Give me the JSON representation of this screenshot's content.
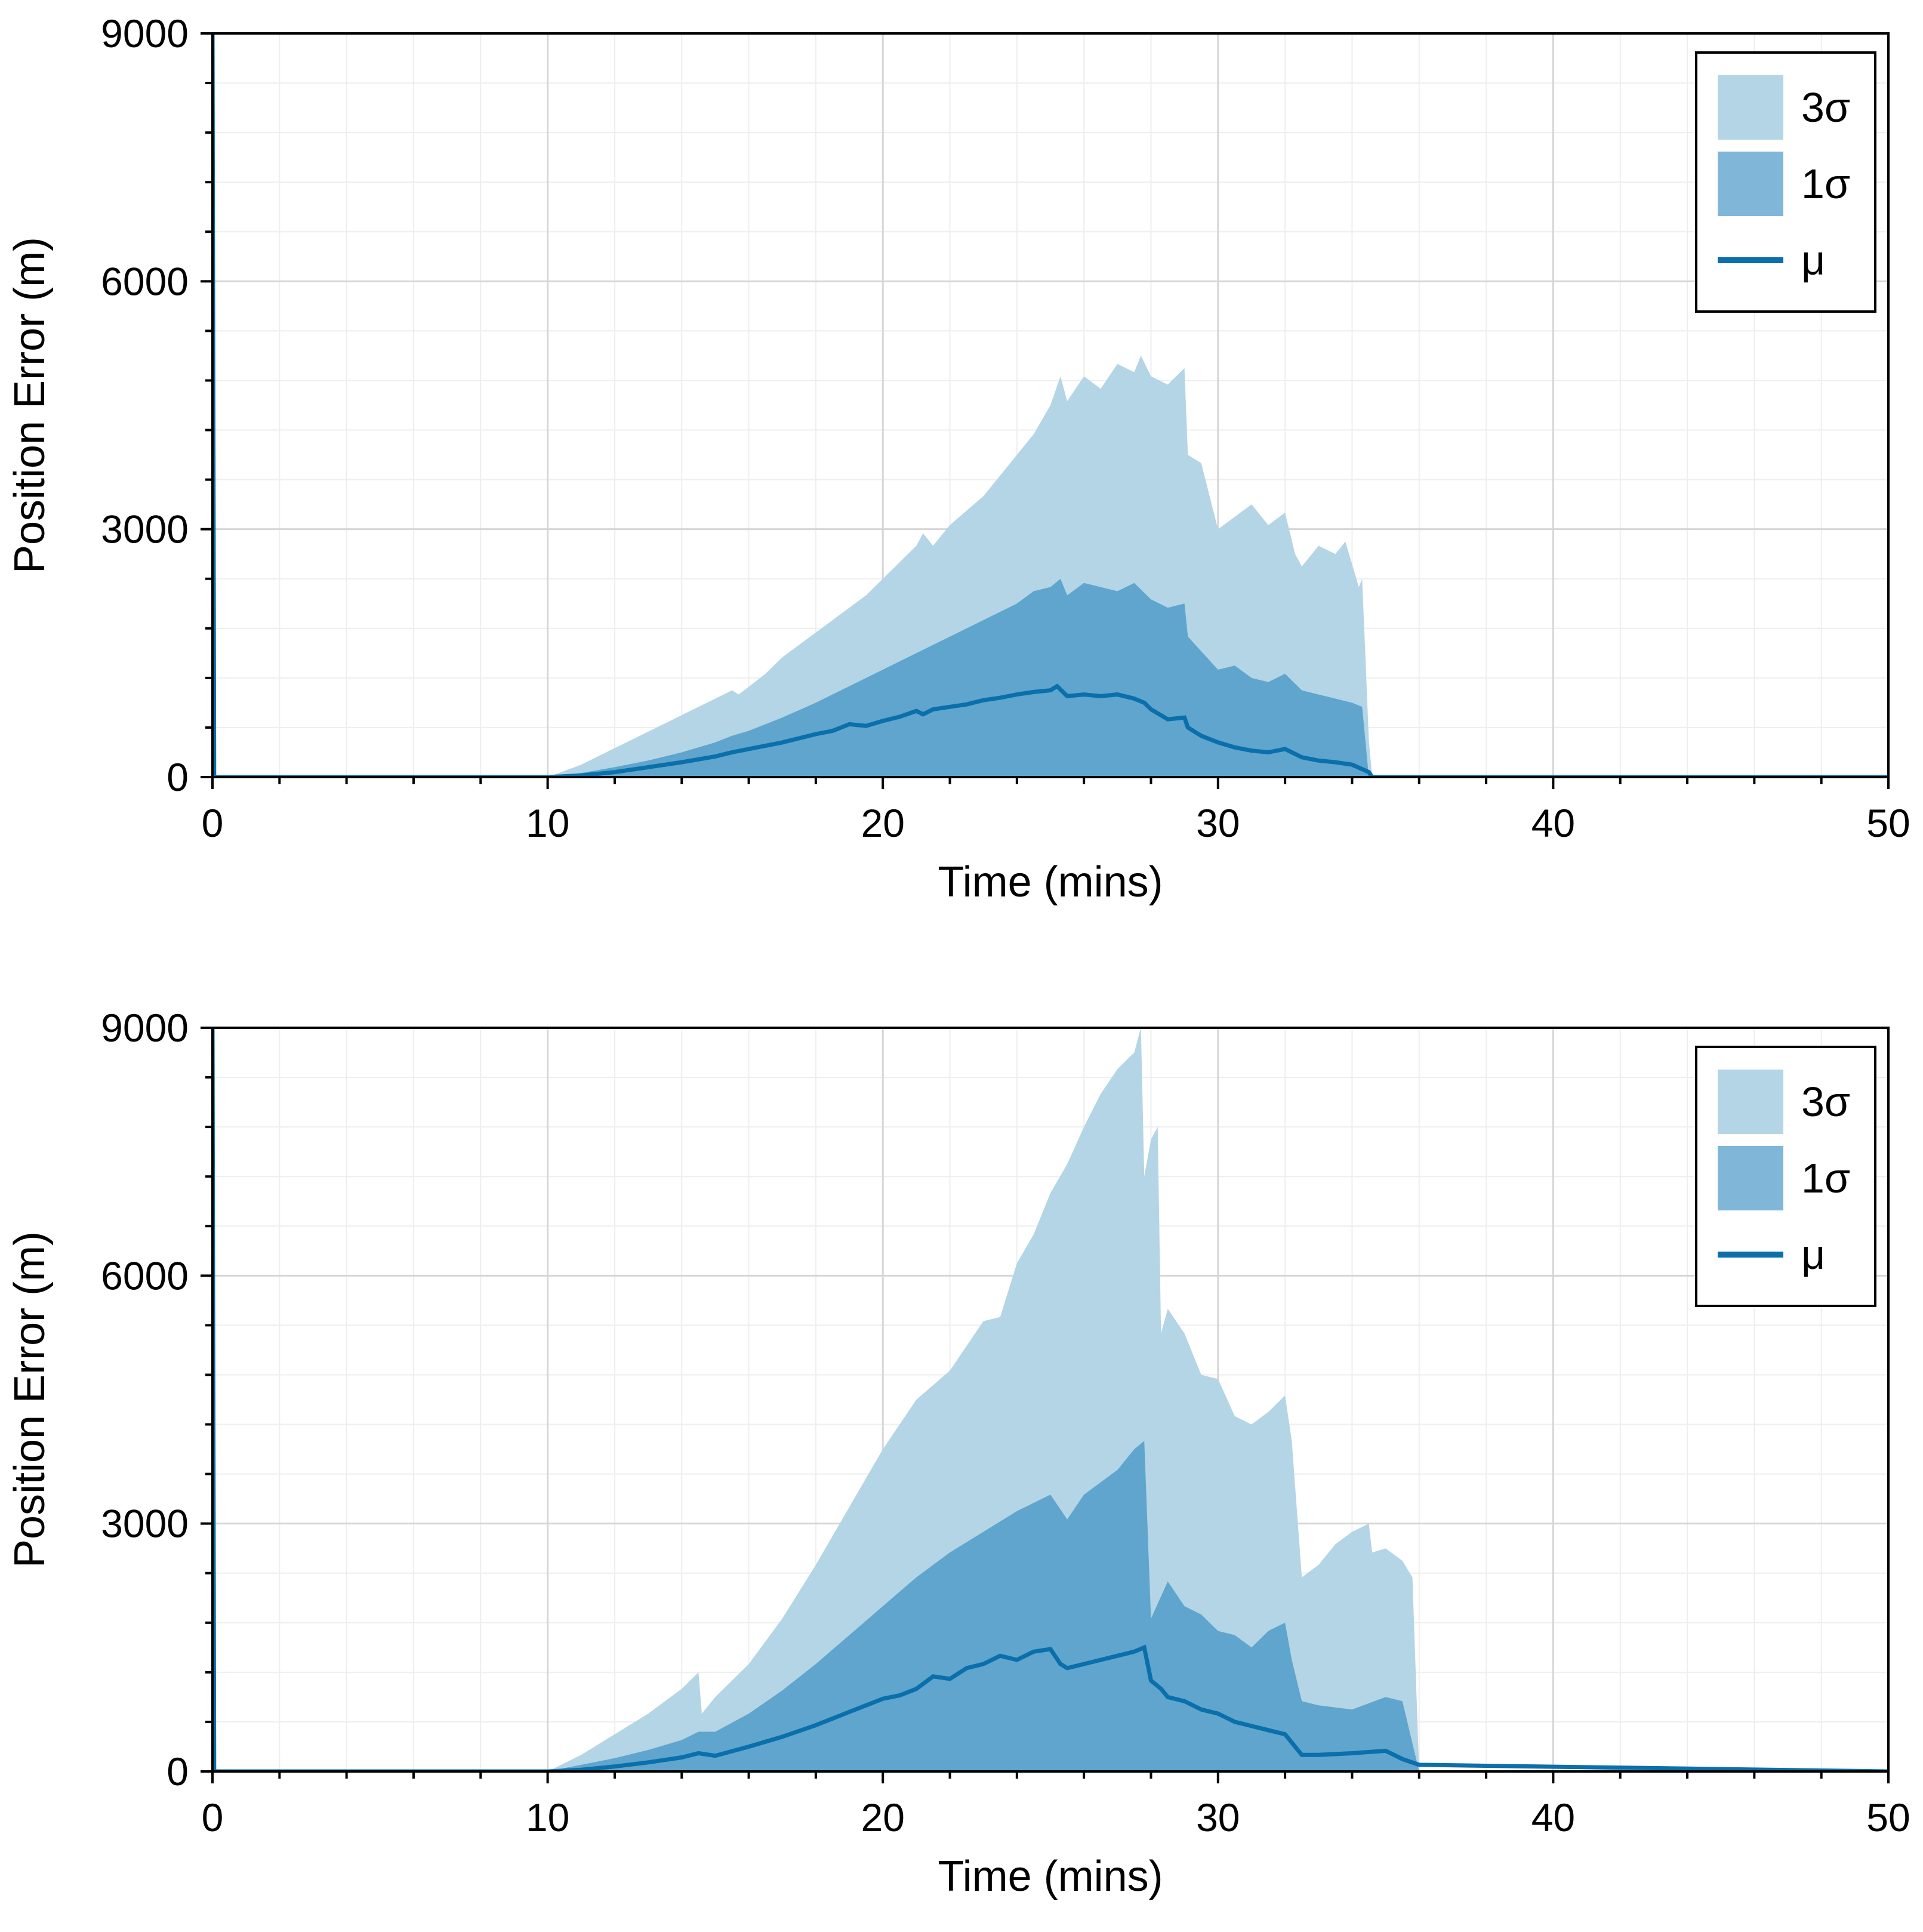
{
  "colors": {
    "band3": "#b3d5e6",
    "band1": "#5fa5cd",
    "mean": "#0a6fab",
    "legendBand3": "#b3d5e6",
    "legendBand1": "#80b7d9",
    "gridMajor": "#d6d6d6",
    "gridMinor": "#eeeeee",
    "axis": "#000000"
  },
  "chart_data": [
    {
      "type": "area",
      "title": "",
      "xlabel": "Time (mins)",
      "ylabel": "Position Error (m)",
      "xlim": [
        0,
        50
      ],
      "ylim": [
        0,
        9000
      ],
      "xticks": [
        0,
        10,
        20,
        30,
        40,
        50
      ],
      "xticklabels": [
        "0",
        "10",
        "20",
        "30",
        "40",
        "50"
      ],
      "yticks": [
        0,
        3000,
        6000,
        9000
      ],
      "yticklabels": [
        "0",
        "3000",
        "6000",
        "9000"
      ],
      "grid": true,
      "legend_position": "top-right",
      "legend": [
        "3σ",
        "1σ",
        "μ"
      ],
      "series": [
        {
          "name": "3σ",
          "x": [
            10.0,
            11.0,
            12.0,
            13.0,
            14.0,
            15.0,
            15.5,
            15.7,
            16.5,
            17.0,
            18.0,
            19.0,
            19.5,
            20.0,
            21.0,
            21.2,
            21.5,
            22.0,
            23.0,
            24.0,
            24.5,
            25.0,
            25.3,
            25.5,
            26.0,
            26.5,
            27.0,
            27.5,
            27.7,
            28.0,
            28.5,
            29.0,
            29.1,
            29.5,
            30.0,
            30.5,
            31.0,
            31.5,
            32.0,
            32.3,
            32.5,
            33.0,
            33.5,
            33.8,
            34.2,
            34.3,
            34.5,
            34.6
          ],
          "upper": [
            0,
            150,
            350,
            550,
            750,
            950,
            1050,
            1000,
            1250,
            1450,
            1750,
            2050,
            2200,
            2400,
            2800,
            2950,
            2800,
            3050,
            3400,
            3900,
            4150,
            4500,
            4850,
            4550,
            4850,
            4700,
            5000,
            4900,
            5100,
            4850,
            4750,
            4950,
            3900,
            3800,
            3000,
            3150,
            3300,
            3050,
            3200,
            2700,
            2550,
            2800,
            2700,
            2850,
            2300,
            2400,
            450,
            0
          ],
          "lower": [
            0,
            0,
            0,
            20,
            40,
            60,
            80,
            80,
            100,
            120,
            140,
            160,
            170,
            150,
            130,
            140,
            100,
            90,
            60,
            30,
            10,
            0,
            0,
            0,
            0,
            0,
            0,
            0,
            0,
            0,
            0,
            0,
            0,
            0,
            0,
            0,
            0,
            0,
            0,
            0,
            0,
            0,
            0,
            0,
            0,
            0,
            0,
            0
          ]
        },
        {
          "name": "1σ",
          "x": [
            10.0,
            11.0,
            12.0,
            13.0,
            14.0,
            15.0,
            15.5,
            16.0,
            17.0,
            18.0,
            19.0,
            20.0,
            21.0,
            22.0,
            23.0,
            24.0,
            24.5,
            25.0,
            25.3,
            25.5,
            26.0,
            27.0,
            27.5,
            28.0,
            28.5,
            29.0,
            29.1,
            30.0,
            30.5,
            31.0,
            31.5,
            32.0,
            32.5,
            33.0,
            33.5,
            34.0,
            34.3,
            34.5
          ],
          "upper": [
            0,
            50,
            120,
            200,
            300,
            420,
            500,
            560,
            720,
            900,
            1100,
            1300,
            1500,
            1700,
            1900,
            2100,
            2250,
            2300,
            2400,
            2200,
            2350,
            2250,
            2350,
            2150,
            2050,
            2100,
            1700,
            1300,
            1350,
            1200,
            1150,
            1250,
            1050,
            1000,
            950,
            900,
            850,
            0
          ],
          "lower": [
            0,
            0,
            0,
            0,
            0,
            0,
            0,
            0,
            0,
            0,
            0,
            0,
            0,
            0,
            0,
            0,
            0,
            0,
            0,
            0,
            0,
            0,
            0,
            0,
            0,
            0,
            0,
            0,
            0,
            0,
            0,
            0,
            0,
            0,
            0,
            0,
            0,
            0
          ]
        },
        {
          "name": "μ",
          "x": [
            0,
            0.05,
            0.1,
            10.0,
            11.0,
            12.0,
            13.0,
            14.0,
            15.0,
            15.5,
            16.0,
            17.0,
            18.0,
            18.5,
            19.0,
            19.5,
            20.0,
            20.5,
            21.0,
            21.2,
            21.5,
            22.0,
            22.5,
            23.0,
            23.5,
            24.0,
            24.5,
            25.0,
            25.2,
            25.5,
            26.0,
            26.5,
            27.0,
            27.5,
            27.8,
            28.0,
            28.5,
            29.0,
            29.1,
            29.5,
            30.0,
            30.5,
            31.0,
            31.5,
            32.0,
            32.5,
            33.0,
            33.5,
            34.0,
            34.5,
            34.6,
            50.0
          ],
          "values": [
            9000,
            0,
            0,
            0,
            20,
            60,
            120,
            180,
            250,
            300,
            340,
            420,
            520,
            560,
            640,
            620,
            680,
            730,
            800,
            760,
            820,
            850,
            880,
            930,
            960,
            1000,
            1030,
            1050,
            1100,
            980,
            1000,
            980,
            1000,
            950,
            900,
            820,
            700,
            720,
            600,
            500,
            420,
            360,
            320,
            300,
            340,
            240,
            200,
            180,
            150,
            60,
            0,
            0
          ]
        }
      ]
    },
    {
      "type": "area",
      "title": "",
      "xlabel": "Time (mins)",
      "ylabel": "Position Error (m)",
      "xlim": [
        0,
        50
      ],
      "ylim": [
        0,
        9000
      ],
      "xticks": [
        0,
        10,
        20,
        30,
        40,
        50
      ],
      "xticklabels": [
        "0",
        "10",
        "20",
        "30",
        "40",
        "50"
      ],
      "yticks": [
        0,
        3000,
        6000,
        9000
      ],
      "yticklabels": [
        "0",
        "3000",
        "6000",
        "9000"
      ],
      "grid": true,
      "legend_position": "top-right",
      "legend": [
        "3σ",
        "1σ",
        "μ"
      ],
      "series": [
        {
          "name": "3σ",
          "x": [
            10.0,
            11.0,
            12.0,
            13.0,
            14.0,
            14.5,
            14.6,
            15.0,
            16.0,
            17.0,
            18.0,
            19.0,
            20.0,
            21.0,
            22.0,
            23.0,
            23.5,
            24.0,
            24.5,
            25.0,
            25.5,
            26.0,
            26.5,
            27.0,
            27.5,
            27.7,
            27.8,
            28.0,
            28.2,
            28.3,
            28.5,
            29.0,
            29.5,
            30.0,
            30.5,
            31.0,
            31.5,
            32.0,
            32.2,
            32.5,
            33.0,
            33.5,
            34.0,
            34.5,
            34.6,
            35.0,
            35.5,
            35.8,
            36.0
          ],
          "upper": [
            0,
            200,
            450,
            700,
            1000,
            1200,
            700,
            900,
            1300,
            1850,
            2500,
            3200,
            3900,
            4500,
            4850,
            5450,
            5500,
            6150,
            6500,
            7000,
            7350,
            7800,
            8200,
            8500,
            8700,
            9000,
            7200,
            7650,
            7800,
            5300,
            5600,
            5300,
            4800,
            4750,
            4300,
            4200,
            4350,
            4550,
            4000,
            2350,
            2500,
            2750,
            2900,
            3000,
            2650,
            2700,
            2550,
            2350,
            0
          ],
          "lower": [
            0,
            0,
            0,
            0,
            0,
            0,
            0,
            0,
            0,
            0,
            0,
            0,
            0,
            0,
            0,
            0,
            0,
            0,
            0,
            0,
            0,
            0,
            0,
            0,
            0,
            0,
            0,
            0,
            0,
            0,
            0,
            0,
            0,
            0,
            0,
            0,
            0,
            0,
            0,
            0,
            0,
            0,
            0,
            0,
            0,
            0,
            0,
            0,
            0
          ]
        },
        {
          "name": "1σ",
          "x": [
            10.0,
            11.0,
            12.0,
            13.0,
            14.0,
            14.5,
            15.0,
            16.0,
            17.0,
            18.0,
            19.0,
            20.0,
            21.0,
            22.0,
            23.0,
            24.0,
            25.0,
            25.5,
            26.0,
            27.0,
            27.5,
            27.8,
            28.0,
            28.5,
            29.0,
            29.5,
            30.0,
            30.5,
            31.0,
            31.5,
            32.0,
            32.2,
            32.5,
            33.0,
            34.0,
            35.0,
            35.5,
            36.0
          ],
          "upper": [
            0,
            80,
            160,
            260,
            380,
            480,
            480,
            700,
            980,
            1300,
            1650,
            2000,
            2350,
            2650,
            2900,
            3150,
            3350,
            3050,
            3350,
            3650,
            3900,
            4000,
            1850,
            2300,
            2000,
            1900,
            1700,
            1650,
            1500,
            1700,
            1800,
            1350,
            850,
            800,
            750,
            900,
            850,
            0
          ],
          "lower": [
            0,
            0,
            0,
            0,
            0,
            0,
            0,
            0,
            0,
            0,
            0,
            0,
            0,
            0,
            0,
            0,
            0,
            0,
            0,
            0,
            0,
            0,
            0,
            0,
            0,
            0,
            0,
            0,
            0,
            0,
            0,
            0,
            0,
            0,
            0,
            0,
            0,
            0
          ]
        },
        {
          "name": "μ",
          "x": [
            0,
            0.05,
            0.1,
            10.0,
            11.0,
            12.0,
            13.0,
            14.0,
            14.5,
            15.0,
            16.0,
            17.0,
            18.0,
            19.0,
            20.0,
            20.5,
            21.0,
            21.5,
            22.0,
            22.5,
            23.0,
            23.5,
            24.0,
            24.5,
            25.0,
            25.3,
            25.5,
            26.0,
            26.5,
            27.0,
            27.5,
            27.8,
            28.0,
            28.3,
            28.5,
            29.0,
            29.5,
            30.0,
            30.5,
            31.0,
            31.5,
            32.0,
            32.3,
            32.5,
            33.0,
            34.0,
            35.0,
            35.5,
            36.0,
            50.0
          ],
          "values": [
            9000,
            0,
            0,
            0,
            20,
            60,
            110,
            170,
            220,
            190,
            300,
            420,
            560,
            720,
            880,
            920,
            1000,
            1150,
            1120,
            1250,
            1300,
            1400,
            1350,
            1450,
            1480,
            1300,
            1250,
            1300,
            1350,
            1400,
            1450,
            1500,
            1100,
            1000,
            900,
            850,
            750,
            700,
            600,
            550,
            500,
            450,
            300,
            200,
            200,
            220,
            250,
            150,
            80,
            0
          ]
        }
      ]
    }
  ]
}
